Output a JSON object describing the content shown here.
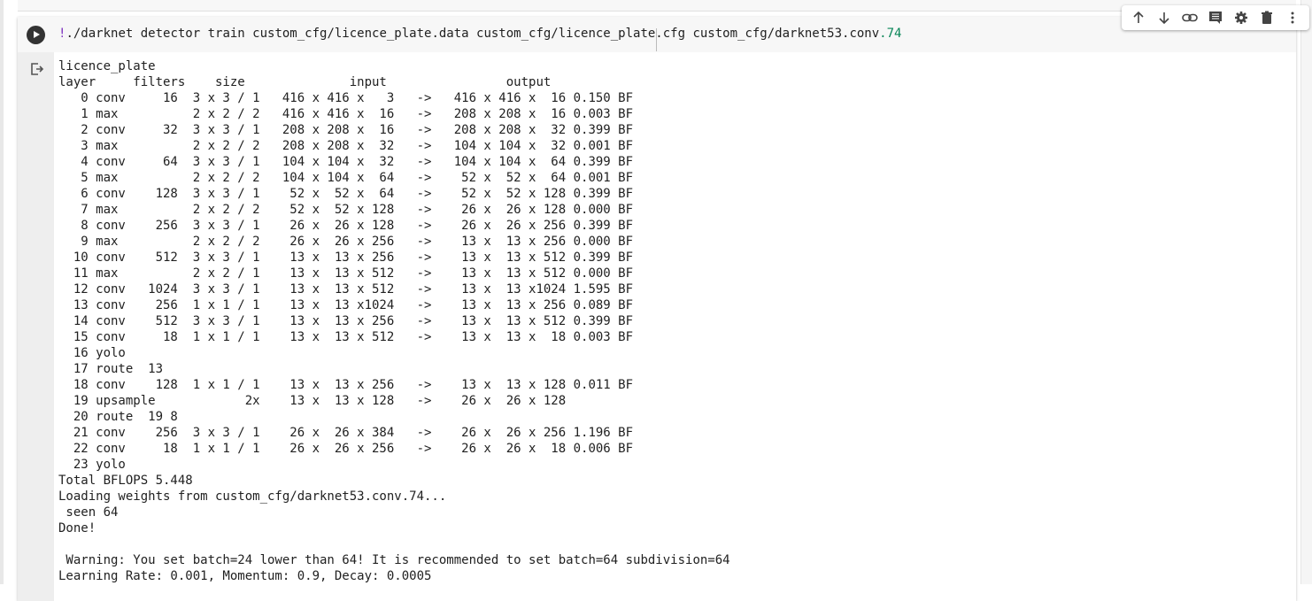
{
  "cell": {
    "command_prefix": "!",
    "command_main": "./darknet detector train custom_cfg/licence_plate.data custom_cfg/licence_plate.cfg custom_cfg/darknet53.conv",
    "command_suffix": ".74",
    "run_icon": "play-circle-icon",
    "output_icon": "output-arrow-icon"
  },
  "toolbar": {
    "icons": [
      "arrow-up-icon",
      "arrow-down-icon",
      "link-icon",
      "comment-icon",
      "gear-icon",
      "trash-icon",
      "more-vert-icon"
    ]
  },
  "output_lines": [
    "licence_plate",
    "layer     filters    size              input                output",
    "   0 conv     16  3 x 3 / 1   416 x 416 x   3   ->   416 x 416 x  16 0.150 BF",
    "   1 max          2 x 2 / 2   416 x 416 x  16   ->   208 x 208 x  16 0.003 BF",
    "   2 conv     32  3 x 3 / 1   208 x 208 x  16   ->   208 x 208 x  32 0.399 BF",
    "   3 max          2 x 2 / 2   208 x 208 x  32   ->   104 x 104 x  32 0.001 BF",
    "   4 conv     64  3 x 3 / 1   104 x 104 x  32   ->   104 x 104 x  64 0.399 BF",
    "   5 max          2 x 2 / 2   104 x 104 x  64   ->    52 x  52 x  64 0.001 BF",
    "   6 conv    128  3 x 3 / 1    52 x  52 x  64   ->    52 x  52 x 128 0.399 BF",
    "   7 max          2 x 2 / 2    52 x  52 x 128   ->    26 x  26 x 128 0.000 BF",
    "   8 conv    256  3 x 3 / 1    26 x  26 x 128   ->    26 x  26 x 256 0.399 BF",
    "   9 max          2 x 2 / 2    26 x  26 x 256   ->    13 x  13 x 256 0.000 BF",
    "  10 conv    512  3 x 3 / 1    13 x  13 x 256   ->    13 x  13 x 512 0.399 BF",
    "  11 max          2 x 2 / 1    13 x  13 x 512   ->    13 x  13 x 512 0.000 BF",
    "  12 conv   1024  3 x 3 / 1    13 x  13 x 512   ->    13 x  13 x1024 1.595 BF",
    "  13 conv    256  1 x 1 / 1    13 x  13 x1024   ->    13 x  13 x 256 0.089 BF",
    "  14 conv    512  3 x 3 / 1    13 x  13 x 256   ->    13 x  13 x 512 0.399 BF",
    "  15 conv     18  1 x 1 / 1    13 x  13 x 512   ->    13 x  13 x  18 0.003 BF",
    "  16 yolo",
    "  17 route  13",
    "  18 conv    128  1 x 1 / 1    13 x  13 x 256   ->    13 x  13 x 128 0.011 BF",
    "  19 upsample            2x    13 x  13 x 128   ->    26 x  26 x 128",
    "  20 route  19 8",
    "  21 conv    256  3 x 3 / 1    26 x  26 x 384   ->    26 x  26 x 256 1.196 BF",
    "  22 conv     18  1 x 1 / 1    26 x  26 x 256   ->    26 x  26 x  18 0.006 BF",
    "  23 yolo",
    "Total BFLOPS 5.448",
    "Loading weights from custom_cfg/darknet53.conv.74...",
    " seen 64",
    "Done!",
    "",
    " Warning: You set batch=24 lower than 64! It is recommended to set batch=64 subdivision=64",
    "Learning Rate: 0.001, Momentum: 0.9, Decay: 0.0005"
  ]
}
